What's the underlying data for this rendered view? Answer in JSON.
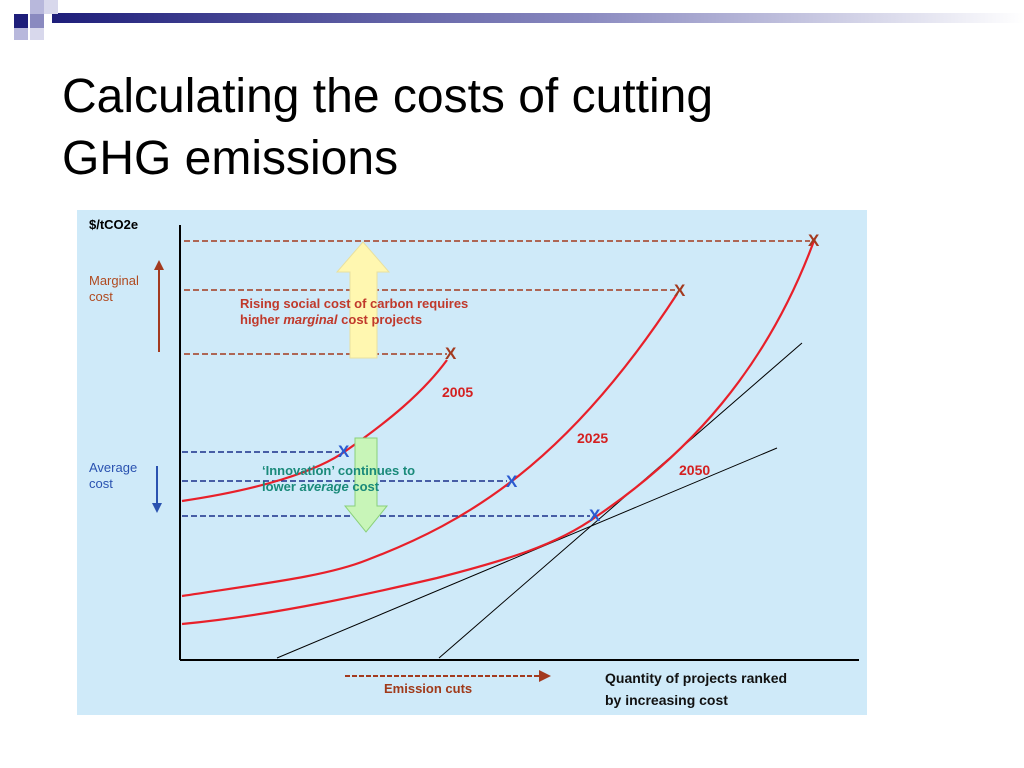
{
  "slide": {
    "title_line1": "Calculating the costs of cutting",
    "title_line2": "GHG emissions"
  },
  "diagram": {
    "y_axis_title": "$/tCO2e",
    "marginal_cost_label_line1": "Marginal",
    "marginal_cost_label_line2": "cost",
    "average_cost_label_line1": "Average",
    "average_cost_label_line2": "cost",
    "rising_note_line1": "Rising social cost of carbon requires",
    "rising_note_line2_pre": "higher ",
    "rising_note_line2_em": "marginal",
    "rising_note_line2_post": " cost projects",
    "innovation_note_line1": "‘Innovation’ continues to",
    "innovation_note_line2_pre": "lower ",
    "innovation_note_line2_em": "average",
    "innovation_note_line2_post": " cost",
    "curve_labels": [
      "2005",
      "2025",
      "2050"
    ],
    "x_axis_title_line1": "Quantity of projects ranked",
    "x_axis_title_line2": "by increasing cost",
    "emission_cuts_label": "Emission cuts",
    "marker_glyph": "X",
    "colors": {
      "background": "#cfeaf9",
      "curve": "#e8202a",
      "marginal": "#a33a1f",
      "average": "#1a2f8a",
      "up_arrow": "#fff7b0",
      "down_arrow": "#c8f5b8"
    }
  }
}
